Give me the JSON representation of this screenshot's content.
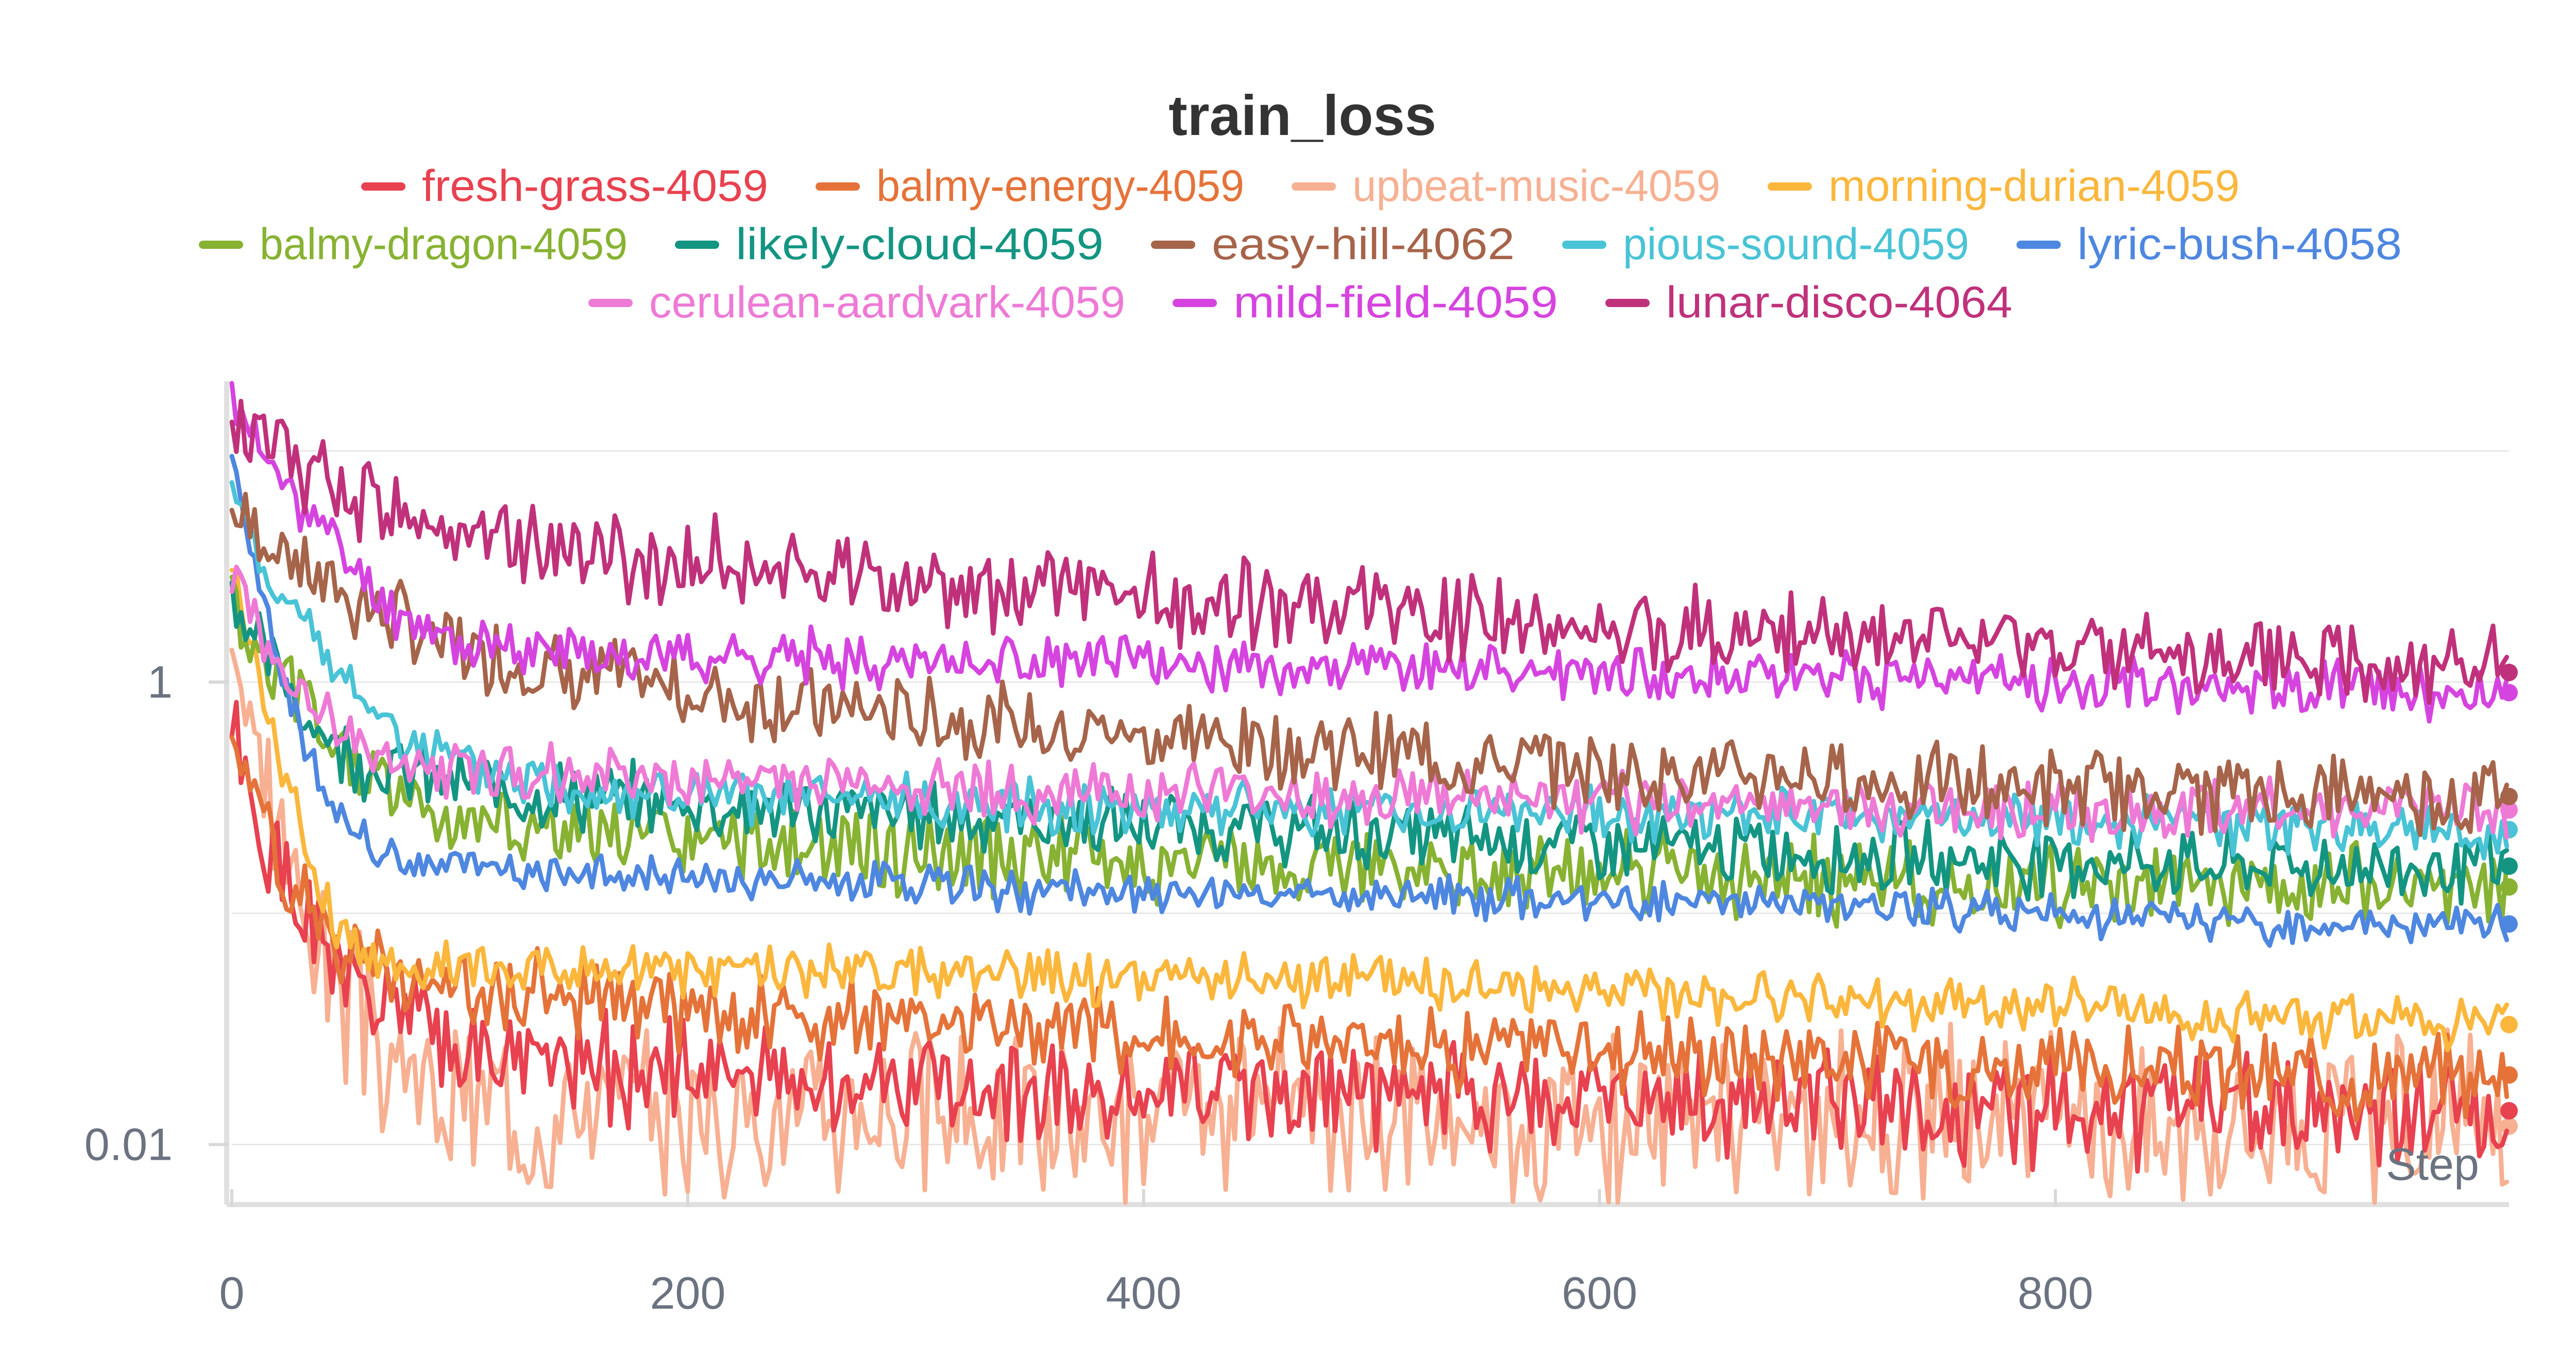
{
  "chart_data": {
    "type": "line",
    "title": "train_loss",
    "xlabel": "Step",
    "ylabel": "",
    "x_scale": "linear",
    "y_scale": "log",
    "xlim": [
      0,
      999
    ],
    "ylim": [
      0.0055,
      20
    ],
    "x_ticks": [
      {
        "value": 0,
        "label": "0"
      },
      {
        "value": 200,
        "label": "200"
      },
      {
        "value": 400,
        "label": "400"
      },
      {
        "value": 600,
        "label": "600"
      },
      {
        "value": 800,
        "label": "800"
      }
    ],
    "y_ticks": [
      {
        "value": 1,
        "label": "1"
      },
      {
        "value": 0.01,
        "label": "0.01"
      }
    ],
    "y_grid": [
      10,
      1,
      0.1,
      0.01
    ],
    "grid": true,
    "legend_position": "top",
    "series": [
      {
        "name": "fresh-grass-4059",
        "color": "#e8414f",
        "x": [
          0,
          10,
          20,
          30,
          40,
          50,
          60,
          70,
          80,
          90,
          100,
          150,
          200,
          250,
          300,
          400,
          500,
          600,
          700,
          800,
          900,
          999
        ],
        "y": [
          0.6,
          0.25,
          0.15,
          0.1,
          0.07,
          0.05,
          0.04,
          0.035,
          0.032,
          0.03,
          0.028,
          0.022,
          0.02,
          0.019,
          0.018,
          0.017,
          0.016,
          0.015,
          0.015,
          0.014,
          0.014,
          0.014
        ],
        "noise": 0.18,
        "seed": 1
      },
      {
        "name": "balmy-energy-4059",
        "color": "#e57339",
        "x": [
          0,
          10,
          20,
          30,
          40,
          50,
          60,
          70,
          80,
          90,
          100,
          150,
          200,
          250,
          300,
          400,
          500,
          600,
          700,
          800,
          900,
          999
        ],
        "y": [
          0.7,
          0.3,
          0.18,
          0.12,
          0.09,
          0.075,
          0.065,
          0.06,
          0.055,
          0.05,
          0.048,
          0.042,
          0.038,
          0.035,
          0.033,
          0.03,
          0.028,
          0.026,
          0.024,
          0.022,
          0.02,
          0.02
        ],
        "noise": 0.14,
        "seed": 2
      },
      {
        "name": "upbeat-music-4059",
        "color": "#f7b092",
        "x": [
          0,
          10,
          20,
          30,
          40,
          50,
          60,
          70,
          80,
          90,
          100,
          150,
          200,
          250,
          300,
          400,
          500,
          600,
          700,
          800,
          900,
          999
        ],
        "y": [
          1.5,
          0.5,
          0.25,
          0.12,
          0.07,
          0.045,
          0.03,
          0.022,
          0.018,
          0.016,
          0.015,
          0.015,
          0.014,
          0.014,
          0.014,
          0.013,
          0.013,
          0.013,
          0.013,
          0.013,
          0.013,
          0.012
        ],
        "noise": 0.28,
        "seed": 3
      },
      {
        "name": "morning-durian-4059",
        "color": "#fbb73c",
        "x": [
          0,
          10,
          20,
          30,
          40,
          50,
          60,
          70,
          80,
          90,
          100,
          150,
          200,
          250,
          300,
          400,
          500,
          600,
          700,
          800,
          900,
          999
        ],
        "y": [
          3.5,
          1.2,
          0.5,
          0.25,
          0.12,
          0.08,
          0.065,
          0.06,
          0.058,
          0.058,
          0.058,
          0.058,
          0.057,
          0.056,
          0.055,
          0.052,
          0.05,
          0.047,
          0.043,
          0.04,
          0.036,
          0.033
        ],
        "noise": 0.09,
        "seed": 4
      },
      {
        "name": "balmy-dragon-4059",
        "color": "#87b232",
        "x": [
          0,
          10,
          20,
          30,
          40,
          50,
          60,
          70,
          80,
          90,
          100,
          150,
          200,
          250,
          300,
          400,
          500,
          600,
          700,
          800,
          900,
          999
        ],
        "y": [
          2.2,
          1.3,
          1.0,
          0.8,
          0.6,
          0.48,
          0.4,
          0.35,
          0.3,
          0.28,
          0.26,
          0.22,
          0.2,
          0.19,
          0.18,
          0.17,
          0.16,
          0.15,
          0.14,
          0.13,
          0.13,
          0.13
        ],
        "noise": 0.14,
        "seed": 5
      },
      {
        "name": "likely-cloud-4059",
        "color": "#139582",
        "x": [
          0,
          10,
          20,
          30,
          40,
          50,
          60,
          70,
          80,
          90,
          100,
          150,
          200,
          250,
          300,
          400,
          500,
          600,
          700,
          800,
          900,
          999
        ],
        "y": [
          2.5,
          1.5,
          1.1,
          0.8,
          0.6,
          0.5,
          0.45,
          0.42,
          0.4,
          0.38,
          0.36,
          0.32,
          0.3,
          0.28,
          0.27,
          0.24,
          0.22,
          0.2,
          0.18,
          0.17,
          0.16,
          0.16
        ],
        "noise": 0.12,
        "seed": 6
      },
      {
        "name": "easy-hill-4062",
        "color": "#a6644a",
        "x": [
          0,
          10,
          20,
          30,
          40,
          50,
          60,
          70,
          80,
          90,
          100,
          150,
          200,
          250,
          300,
          400,
          500,
          600,
          700,
          800,
          900,
          999
        ],
        "y": [
          6,
          4.5,
          3.8,
          3.3,
          2.8,
          2.4,
          2.1,
          1.9,
          1.7,
          1.55,
          1.4,
          1.1,
          0.9,
          0.8,
          0.72,
          0.6,
          0.5,
          0.42,
          0.38,
          0.35,
          0.33,
          0.32
        ],
        "noise": 0.13,
        "seed": 7
      },
      {
        "name": "pious-sound-4059",
        "color": "#49c3d6",
        "x": [
          0,
          10,
          20,
          30,
          40,
          50,
          60,
          70,
          80,
          90,
          100,
          150,
          200,
          250,
          300,
          400,
          500,
          600,
          700,
          800,
          900,
          999
        ],
        "y": [
          7,
          4,
          2.5,
          1.8,
          1.3,
          1,
          0.8,
          0.65,
          0.55,
          0.48,
          0.42,
          0.35,
          0.32,
          0.31,
          0.3,
          0.29,
          0.28,
          0.27,
          0.26,
          0.25,
          0.24,
          0.23
        ],
        "noise": 0.09,
        "seed": 8
      },
      {
        "name": "lyric-bush-4058",
        "color": "#4e87e0",
        "x": [
          0,
          10,
          20,
          30,
          40,
          50,
          60,
          70,
          80,
          90,
          100,
          150,
          200,
          250,
          300,
          400,
          500,
          600,
          700,
          800,
          900,
          999
        ],
        "y": [
          10,
          3,
          1.2,
          0.6,
          0.35,
          0.25,
          0.2,
          0.18,
          0.17,
          0.16,
          0.16,
          0.15,
          0.14,
          0.14,
          0.13,
          0.12,
          0.12,
          0.115,
          0.11,
          0.1,
          0.09,
          0.09
        ],
        "noise": 0.07,
        "seed": 9
      },
      {
        "name": "cerulean-aardvark-4059",
        "color": "#ee7ad6",
        "x": [
          0,
          10,
          20,
          30,
          40,
          50,
          60,
          70,
          80,
          90,
          100,
          150,
          200,
          250,
          300,
          400,
          500,
          600,
          700,
          800,
          900,
          999
        ],
        "y": [
          3,
          2,
          1.2,
          0.9,
          0.7,
          0.55,
          0.5,
          0.48,
          0.46,
          0.44,
          0.43,
          0.4,
          0.38,
          0.36,
          0.35,
          0.33,
          0.31,
          0.3,
          0.29,
          0.28,
          0.28,
          0.28
        ],
        "noise": 0.1,
        "seed": 10
      },
      {
        "name": "mild-field-4059",
        "color": "#d644e0",
        "x": [
          0,
          10,
          20,
          30,
          40,
          50,
          60,
          70,
          80,
          90,
          100,
          150,
          200,
          250,
          300,
          400,
          500,
          600,
          700,
          800,
          900,
          999
        ],
        "y": [
          18,
          11,
          8,
          6,
          4.5,
          3.5,
          2.6,
          2.1,
          1.8,
          1.6,
          1.45,
          1.35,
          1.3,
          1.28,
          1.25,
          1.2,
          1.15,
          1.1,
          1.05,
          1,
          0.95,
          0.9
        ],
        "noise": 0.09,
        "seed": 11
      },
      {
        "name": "lunar-disco-4064",
        "color": "#c0317b",
        "x": [
          0,
          10,
          20,
          30,
          40,
          50,
          60,
          70,
          80,
          90,
          100,
          150,
          200,
          250,
          300,
          400,
          500,
          600,
          700,
          800,
          900,
          999
        ],
        "y": [
          13,
          11,
          9.5,
          8.5,
          7.7,
          7,
          6.4,
          5.8,
          5.3,
          4.9,
          4.5,
          3.8,
          3.3,
          3,
          2.7,
          2.3,
          2,
          1.7,
          1.5,
          1.35,
          1.2,
          1.1
        ],
        "noise": 0.15,
        "seed": 12
      }
    ]
  }
}
